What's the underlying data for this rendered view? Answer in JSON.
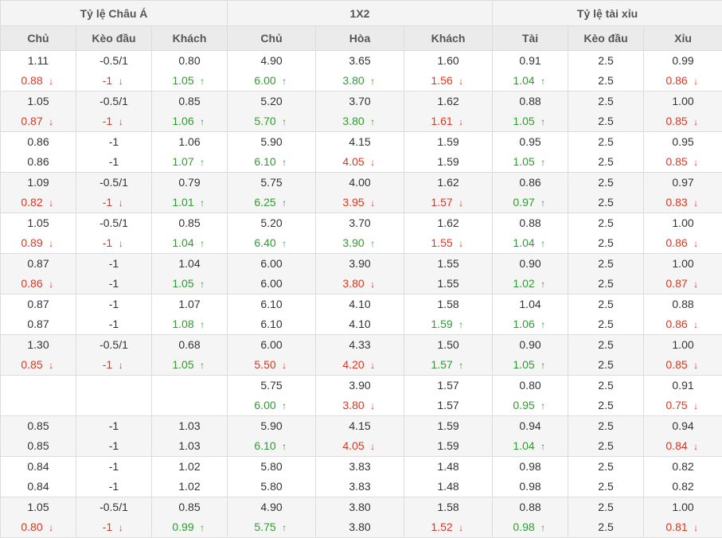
{
  "header": {
    "groups": [
      {
        "label": "Tỷ lệ Châu Á",
        "span": 3
      },
      {
        "label": "1X2",
        "span": 3
      },
      {
        "label": "Tỷ lệ tài xỉu",
        "span": 3
      }
    ],
    "columns": [
      "Chủ",
      "Kèo đầu",
      "Khách",
      "Chủ",
      "Hòa",
      "Khách",
      "Tài",
      "Kèo đầu",
      "Xỉu"
    ]
  },
  "colors": {
    "up": "#2e9c2e",
    "down": "#e3341d",
    "neutral": "#333333"
  },
  "icons": {
    "up": "arrow-up-icon",
    "down": "arrow-down-icon"
  },
  "rows": [
    [
      [
        {
          "t": "1.11"
        },
        {
          "t": "0.88",
          "d": "down"
        }
      ],
      [
        {
          "t": "-0.5/1"
        },
        {
          "t": "-1",
          "d": "down"
        }
      ],
      [
        {
          "t": "0.80"
        },
        {
          "t": "1.05",
          "d": "up"
        }
      ],
      [
        {
          "t": "4.90"
        },
        {
          "t": "6.00",
          "d": "up"
        }
      ],
      [
        {
          "t": "3.65"
        },
        {
          "t": "3.80",
          "d": "up"
        }
      ],
      [
        {
          "t": "1.60"
        },
        {
          "t": "1.56",
          "d": "down"
        }
      ],
      [
        {
          "t": "0.91"
        },
        {
          "t": "1.04",
          "d": "up"
        }
      ],
      [
        {
          "t": "2.5"
        },
        {
          "t": "2.5"
        }
      ],
      [
        {
          "t": "0.99"
        },
        {
          "t": "0.86",
          "d": "down"
        }
      ]
    ],
    [
      [
        {
          "t": "1.05"
        },
        {
          "t": "0.87",
          "d": "down"
        }
      ],
      [
        {
          "t": "-0.5/1"
        },
        {
          "t": "-1",
          "d": "down"
        }
      ],
      [
        {
          "t": "0.85"
        },
        {
          "t": "1.06",
          "d": "up"
        }
      ],
      [
        {
          "t": "5.20"
        },
        {
          "t": "5.70",
          "d": "up"
        }
      ],
      [
        {
          "t": "3.70"
        },
        {
          "t": "3.80",
          "d": "up"
        }
      ],
      [
        {
          "t": "1.62"
        },
        {
          "t": "1.61",
          "d": "down"
        }
      ],
      [
        {
          "t": "0.88"
        },
        {
          "t": "1.05",
          "d": "up"
        }
      ],
      [
        {
          "t": "2.5"
        },
        {
          "t": "2.5"
        }
      ],
      [
        {
          "t": "1.00"
        },
        {
          "t": "0.85",
          "d": "down"
        }
      ]
    ],
    [
      [
        {
          "t": "0.86"
        },
        {
          "t": "0.86"
        }
      ],
      [
        {
          "t": "-1"
        },
        {
          "t": "-1"
        }
      ],
      [
        {
          "t": "1.06"
        },
        {
          "t": "1.07",
          "d": "up"
        }
      ],
      [
        {
          "t": "5.90"
        },
        {
          "t": "6.10",
          "d": "up"
        }
      ],
      [
        {
          "t": "4.15"
        },
        {
          "t": "4.05",
          "d": "down"
        }
      ],
      [
        {
          "t": "1.59"
        },
        {
          "t": "1.59"
        }
      ],
      [
        {
          "t": "0.95"
        },
        {
          "t": "1.05",
          "d": "up"
        }
      ],
      [
        {
          "t": "2.5"
        },
        {
          "t": "2.5"
        }
      ],
      [
        {
          "t": "0.95"
        },
        {
          "t": "0.85",
          "d": "down"
        }
      ]
    ],
    [
      [
        {
          "t": "1.09"
        },
        {
          "t": "0.82",
          "d": "down"
        }
      ],
      [
        {
          "t": "-0.5/1"
        },
        {
          "t": "-1",
          "d": "down"
        }
      ],
      [
        {
          "t": "0.79"
        },
        {
          "t": "1.01",
          "d": "up"
        }
      ],
      [
        {
          "t": "5.75"
        },
        {
          "t": "6.25",
          "d": "up"
        }
      ],
      [
        {
          "t": "4.00"
        },
        {
          "t": "3.95",
          "d": "down"
        }
      ],
      [
        {
          "t": "1.62"
        },
        {
          "t": "1.57",
          "d": "down"
        }
      ],
      [
        {
          "t": "0.86"
        },
        {
          "t": "0.97",
          "d": "up"
        }
      ],
      [
        {
          "t": "2.5"
        },
        {
          "t": "2.5"
        }
      ],
      [
        {
          "t": "0.97"
        },
        {
          "t": "0.83",
          "d": "down"
        }
      ]
    ],
    [
      [
        {
          "t": "1.05"
        },
        {
          "t": "0.89",
          "d": "down"
        }
      ],
      [
        {
          "t": "-0.5/1"
        },
        {
          "t": "-1",
          "d": "down"
        }
      ],
      [
        {
          "t": "0.85"
        },
        {
          "t": "1.04",
          "d": "up"
        }
      ],
      [
        {
          "t": "5.20"
        },
        {
          "t": "6.40",
          "d": "up"
        }
      ],
      [
        {
          "t": "3.70"
        },
        {
          "t": "3.90",
          "d": "up"
        }
      ],
      [
        {
          "t": "1.62"
        },
        {
          "t": "1.55",
          "d": "down"
        }
      ],
      [
        {
          "t": "0.88"
        },
        {
          "t": "1.04",
          "d": "up"
        }
      ],
      [
        {
          "t": "2.5"
        },
        {
          "t": "2.5"
        }
      ],
      [
        {
          "t": "1.00"
        },
        {
          "t": "0.86",
          "d": "down"
        }
      ]
    ],
    [
      [
        {
          "t": "0.87"
        },
        {
          "t": "0.86",
          "d": "down"
        }
      ],
      [
        {
          "t": "-1"
        },
        {
          "t": "-1"
        }
      ],
      [
        {
          "t": "1.04"
        },
        {
          "t": "1.05",
          "d": "up"
        }
      ],
      [
        {
          "t": "6.00"
        },
        {
          "t": "6.00"
        }
      ],
      [
        {
          "t": "3.90"
        },
        {
          "t": "3.80",
          "d": "down"
        }
      ],
      [
        {
          "t": "1.55"
        },
        {
          "t": "1.55"
        }
      ],
      [
        {
          "t": "0.90"
        },
        {
          "t": "1.02",
          "d": "up"
        }
      ],
      [
        {
          "t": "2.5"
        },
        {
          "t": "2.5"
        }
      ],
      [
        {
          "t": "1.00"
        },
        {
          "t": "0.87",
          "d": "down"
        }
      ]
    ],
    [
      [
        {
          "t": "0.87"
        },
        {
          "t": "0.87"
        }
      ],
      [
        {
          "t": "-1"
        },
        {
          "t": "-1"
        }
      ],
      [
        {
          "t": "1.07"
        },
        {
          "t": "1.08",
          "d": "up"
        }
      ],
      [
        {
          "t": "6.10"
        },
        {
          "t": "6.10"
        }
      ],
      [
        {
          "t": "4.10"
        },
        {
          "t": "4.10"
        }
      ],
      [
        {
          "t": "1.58"
        },
        {
          "t": "1.59",
          "d": "up"
        }
      ],
      [
        {
          "t": "1.04"
        },
        {
          "t": "1.06",
          "d": "up"
        }
      ],
      [
        {
          "t": "2.5"
        },
        {
          "t": "2.5"
        }
      ],
      [
        {
          "t": "0.88"
        },
        {
          "t": "0.86",
          "d": "down"
        }
      ]
    ],
    [
      [
        {
          "t": "1.30"
        },
        {
          "t": "0.85",
          "d": "down"
        }
      ],
      [
        {
          "t": "-0.5/1"
        },
        {
          "t": "-1",
          "d": "down"
        }
      ],
      [
        {
          "t": "0.68"
        },
        {
          "t": "1.05",
          "d": "up"
        }
      ],
      [
        {
          "t": "6.00"
        },
        {
          "t": "5.50",
          "d": "down"
        }
      ],
      [
        {
          "t": "4.33"
        },
        {
          "t": "4.20",
          "d": "down"
        }
      ],
      [
        {
          "t": "1.50"
        },
        {
          "t": "1.57",
          "d": "up"
        }
      ],
      [
        {
          "t": "0.90"
        },
        {
          "t": "1.05",
          "d": "up"
        }
      ],
      [
        {
          "t": "2.5"
        },
        {
          "t": "2.5"
        }
      ],
      [
        {
          "t": "1.00"
        },
        {
          "t": "0.85",
          "d": "down"
        }
      ]
    ],
    [
      [],
      [],
      [],
      [
        {
          "t": "5.75"
        },
        {
          "t": "6.00",
          "d": "up"
        }
      ],
      [
        {
          "t": "3.90"
        },
        {
          "t": "3.80",
          "d": "down"
        }
      ],
      [
        {
          "t": "1.57"
        },
        {
          "t": "1.57"
        }
      ],
      [
        {
          "t": "0.80"
        },
        {
          "t": "0.95",
          "d": "up"
        }
      ],
      [
        {
          "t": "2.5"
        },
        {
          "t": "2.5"
        }
      ],
      [
        {
          "t": "0.91"
        },
        {
          "t": "0.75",
          "d": "down"
        }
      ]
    ],
    [
      [
        {
          "t": "0.85"
        },
        {
          "t": "0.85"
        }
      ],
      [
        {
          "t": "-1"
        },
        {
          "t": "-1"
        }
      ],
      [
        {
          "t": "1.03"
        },
        {
          "t": "1.03"
        }
      ],
      [
        {
          "t": "5.90"
        },
        {
          "t": "6.10",
          "d": "up"
        }
      ],
      [
        {
          "t": "4.15"
        },
        {
          "t": "4.05",
          "d": "down"
        }
      ],
      [
        {
          "t": "1.59"
        },
        {
          "t": "1.59"
        }
      ],
      [
        {
          "t": "0.94"
        },
        {
          "t": "1.04",
          "d": "up"
        }
      ],
      [
        {
          "t": "2.5"
        },
        {
          "t": "2.5"
        }
      ],
      [
        {
          "t": "0.94"
        },
        {
          "t": "0.84",
          "d": "down"
        }
      ]
    ],
    [
      [
        {
          "t": "0.84"
        },
        {
          "t": "0.84"
        }
      ],
      [
        {
          "t": "-1"
        },
        {
          "t": "-1"
        }
      ],
      [
        {
          "t": "1.02"
        },
        {
          "t": "1.02"
        }
      ],
      [
        {
          "t": "5.80"
        },
        {
          "t": "5.80"
        }
      ],
      [
        {
          "t": "3.83"
        },
        {
          "t": "3.83"
        }
      ],
      [
        {
          "t": "1.48"
        },
        {
          "t": "1.48"
        }
      ],
      [
        {
          "t": "0.98"
        },
        {
          "t": "0.98"
        }
      ],
      [
        {
          "t": "2.5"
        },
        {
          "t": "2.5"
        }
      ],
      [
        {
          "t": "0.82"
        },
        {
          "t": "0.82"
        }
      ]
    ],
    [
      [
        {
          "t": "1.05"
        },
        {
          "t": "0.80",
          "d": "down"
        }
      ],
      [
        {
          "t": "-0.5/1"
        },
        {
          "t": "-1",
          "d": "down"
        }
      ],
      [
        {
          "t": "0.85"
        },
        {
          "t": "0.99",
          "d": "up"
        }
      ],
      [
        {
          "t": "4.90"
        },
        {
          "t": "5.75",
          "d": "up"
        }
      ],
      [
        {
          "t": "3.80"
        },
        {
          "t": "3.80"
        }
      ],
      [
        {
          "t": "1.58"
        },
        {
          "t": "1.52",
          "d": "down"
        }
      ],
      [
        {
          "t": "0.88"
        },
        {
          "t": "0.98",
          "d": "up"
        }
      ],
      [
        {
          "t": "2.5"
        },
        {
          "t": "2.5"
        }
      ],
      [
        {
          "t": "1.00"
        },
        {
          "t": "0.81",
          "d": "down"
        }
      ]
    ]
  ]
}
